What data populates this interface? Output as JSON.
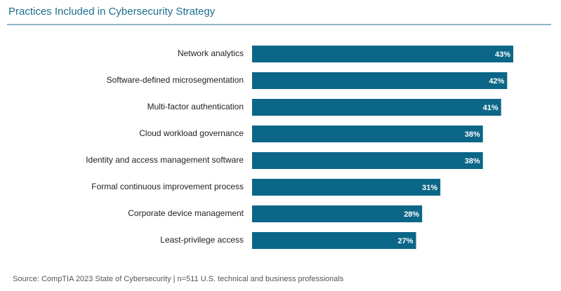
{
  "chart_data": {
    "type": "bar",
    "orientation": "horizontal",
    "title": "Practices Included in Cybersecurity Strategy",
    "categories": [
      "Network analytics",
      "Software-defined microsegmentation",
      "Multi-factor authentication",
      "Cloud workload governance",
      "Identity and access management software",
      "Formal continuous improvement process",
      "Corporate device management",
      "Least-privilege access"
    ],
    "values": [
      43,
      42,
      41,
      38,
      38,
      31,
      28,
      27
    ],
    "value_labels": [
      "43%",
      "42%",
      "41%",
      "38%",
      "38%",
      "31%",
      "28%",
      "27%"
    ],
    "color": "#0b6687",
    "source": "Source: CompTIA 2023 State of Cybersecurity | n=511 U.S. technical and business professionals"
  }
}
